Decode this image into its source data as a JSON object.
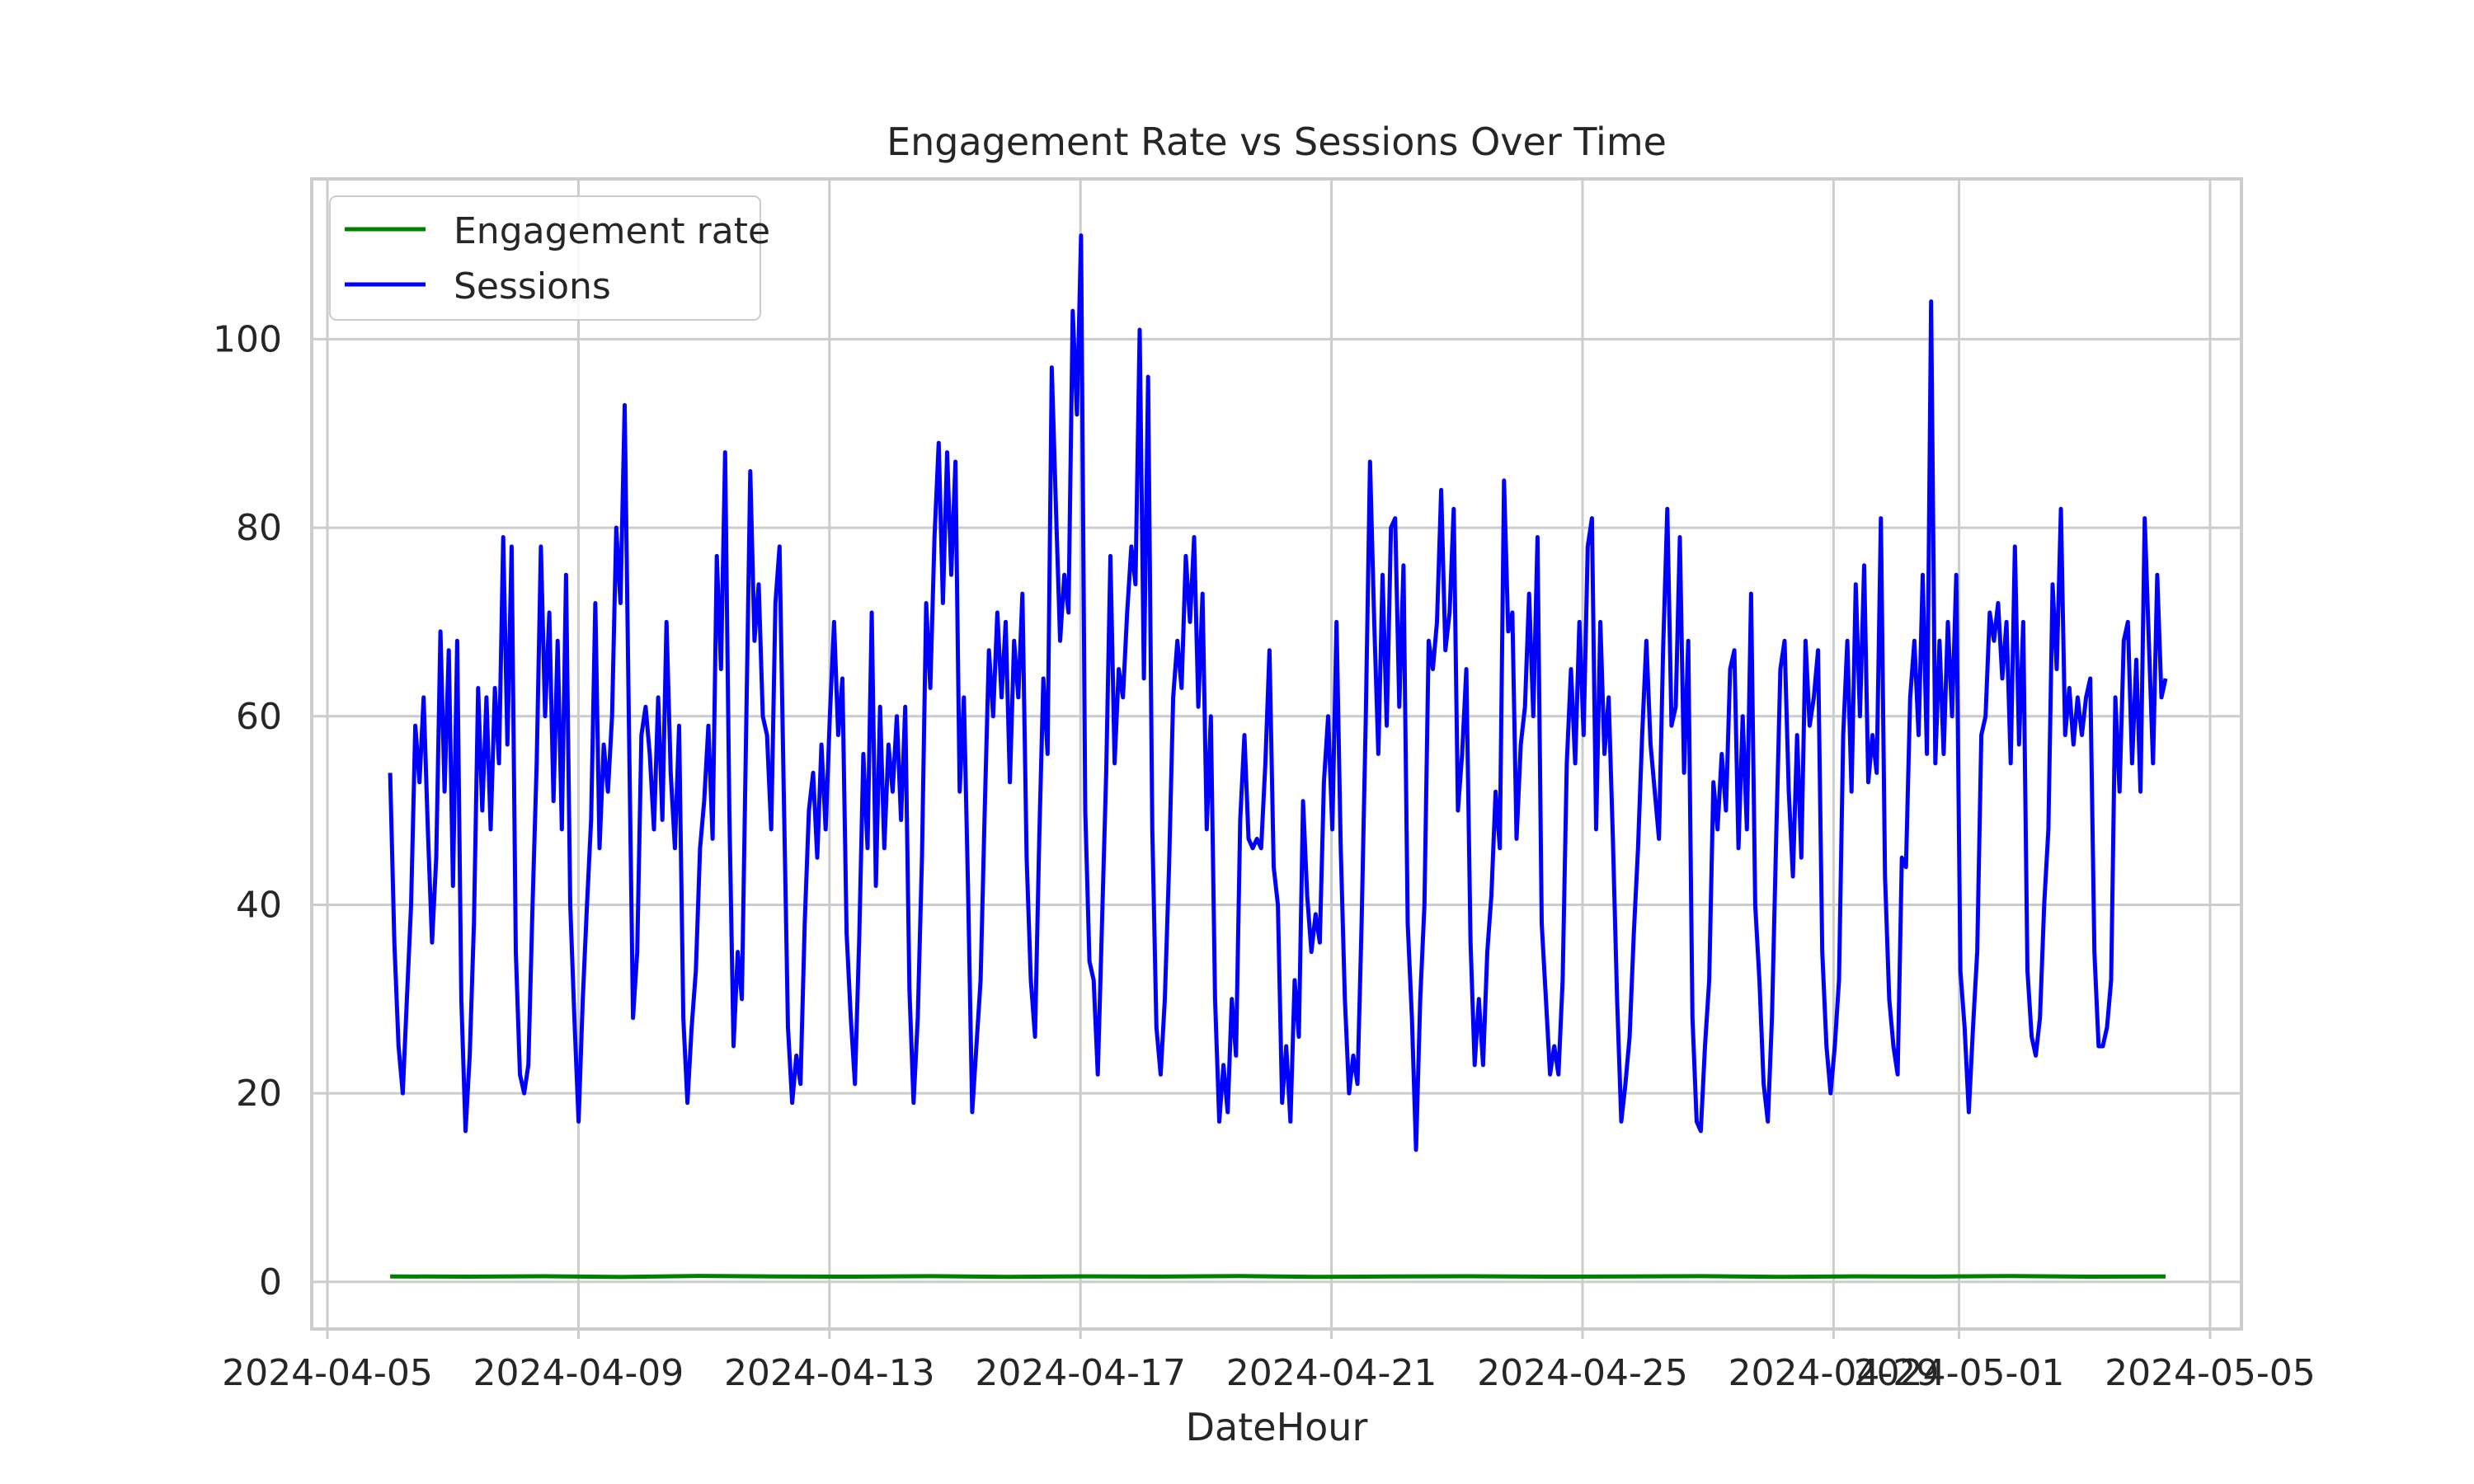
{
  "chart_data": {
    "type": "line",
    "title": "Engagement Rate vs Sessions Over Time",
    "xlabel": "DateHour",
    "ylabel": "",
    "xlim": [
      "2024-04-04T18:00",
      "2024-05-05T12:00"
    ],
    "ylim": [
      -5,
      117
    ],
    "x_ticks": [
      "2024-04-05",
      "2024-04-09",
      "2024-04-13",
      "2024-04-17",
      "2024-04-21",
      "2024-04-25",
      "2024-04-29",
      "2024-05-01",
      "2024-05-05"
    ],
    "y_ticks": [
      0,
      20,
      40,
      60,
      80,
      100
    ],
    "grid": true,
    "legend_position": "upper-left",
    "x_start": "2024-04-06T00:00",
    "x_end": "2024-05-04T07:00",
    "series": [
      {
        "name": "Engagement rate",
        "color": "#008000",
        "values": [
          0.58,
          0.55,
          0.6,
          0.52,
          0.63,
          0.57,
          0.55,
          0.61,
          0.54,
          0.59,
          0.56,
          0.62,
          0.53,
          0.58,
          0.6,
          0.55,
          0.57,
          0.61,
          0.54,
          0.59,
          0.56,
          0.62,
          0.55,
          0.58
        ]
      },
      {
        "name": "Sessions",
        "color": "#0000ff",
        "values": [
          54,
          36,
          25,
          20,
          30,
          40,
          59,
          53,
          62,
          48,
          36,
          45,
          69,
          52,
          67,
          42,
          68,
          30,
          16,
          24,
          38,
          63,
          50,
          62,
          48,
          63,
          55,
          79,
          57,
          78,
          35,
          22,
          20,
          23,
          40,
          55,
          78,
          60,
          71,
          51,
          68,
          48,
          75,
          40,
          28,
          17,
          30,
          40,
          49,
          72,
          46,
          57,
          52,
          60,
          80,
          72,
          93,
          60,
          28,
          35,
          58,
          61,
          56,
          48,
          62,
          49,
          70,
          54,
          46,
          59,
          28,
          19,
          27,
          33,
          46,
          51,
          59,
          47,
          77,
          65,
          88,
          50,
          25,
          35,
          30,
          58,
          86,
          68,
          74,
          60,
          58,
          48,
          72,
          78,
          52,
          27,
          19,
          24,
          21,
          38,
          50,
          54,
          45,
          57,
          48,
          60,
          70,
          58,
          64,
          37,
          28,
          21,
          36,
          56,
          46,
          71,
          42,
          61,
          46,
          57,
          52,
          60,
          49,
          61,
          31,
          19,
          28,
          45,
          72,
          63,
          79,
          89,
          72,
          88,
          75,
          87,
          52,
          62,
          42,
          18,
          25,
          32,
          50,
          67,
          60,
          71,
          62,
          70,
          53,
          68,
          62,
          73,
          45,
          32,
          26,
          47,
          64,
          56,
          97,
          82,
          68,
          75,
          71,
          103,
          92,
          111,
          50,
          34,
          32,
          22,
          38,
          54,
          77,
          55,
          65,
          62,
          71,
          78,
          74,
          101,
          64,
          96,
          48,
          27,
          22,
          30,
          44,
          62,
          68,
          63,
          77,
          70,
          79,
          61,
          73,
          48,
          60,
          30,
          17,
          23,
          18,
          30,
          24,
          49,
          58,
          47,
          46,
          47,
          46,
          55,
          67,
          44,
          40,
          19,
          25,
          17,
          32,
          26,
          51,
          41,
          35,
          39,
          36,
          53,
          60,
          48,
          70,
          46,
          30,
          20,
          24,
          21,
          38,
          60,
          87,
          70,
          56,
          75,
          59,
          80,
          81,
          61,
          76,
          38,
          28,
          14,
          30,
          40,
          68,
          65,
          70,
          84,
          67,
          71,
          82,
          50,
          56,
          65,
          36,
          23,
          30,
          23,
          35,
          41,
          52,
          46,
          85,
          69,
          71,
          47,
          57,
          61,
          73,
          60,
          79,
          38,
          30,
          22,
          25,
          22,
          32,
          55,
          65,
          55,
          70,
          58,
          78,
          81,
          48,
          70,
          56,
          62,
          47,
          30,
          17,
          21,
          26,
          37,
          46,
          58,
          68,
          57,
          52,
          47,
          67,
          82,
          59,
          61,
          79,
          54,
          68,
          28,
          17,
          16,
          25,
          32,
          53,
          48,
          56,
          50,
          65,
          67,
          46,
          60,
          48,
          73,
          40,
          32,
          21,
          17,
          28,
          47,
          65,
          68,
          52,
          43,
          58,
          45,
          68,
          59,
          62,
          67,
          35,
          25,
          20,
          25,
          32,
          58,
          68,
          52,
          74,
          60,
          76,
          53,
          58,
          54,
          81,
          43,
          30,
          25,
          22,
          45,
          44,
          62,
          68,
          58,
          75,
          56,
          104,
          55,
          68,
          56,
          70,
          60,
          75,
          33,
          27,
          18,
          27,
          35,
          58,
          60,
          71,
          68,
          72,
          64,
          70,
          55,
          78,
          57,
          70,
          33,
          26,
          24,
          28,
          40,
          48,
          74,
          65,
          82,
          58,
          63,
          57,
          62,
          58,
          62,
          64,
          35,
          25,
          25,
          27,
          32,
          62,
          52,
          68,
          70,
          55,
          66,
          52,
          81,
          68,
          55,
          75,
          62,
          64
        ]
      }
    ]
  }
}
